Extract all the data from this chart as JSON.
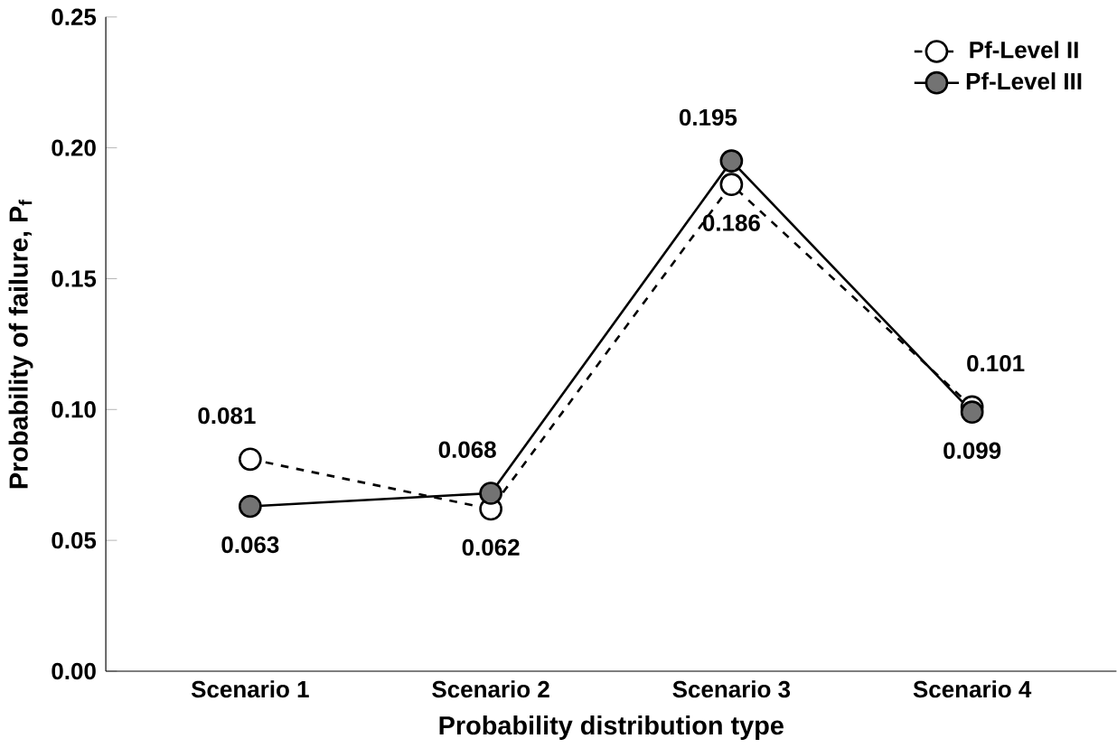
{
  "chart_data": {
    "type": "line",
    "xlabel": "Probability distribution type",
    "ylabel": "Probability of failure, P$_{f}$",
    "categories": [
      "Scenario 1",
      "Scenario 2",
      "Scenario 3",
      "Scenario 4"
    ],
    "series": [
      {
        "name": "Pf-Level II",
        "color": "#000000",
        "line_style": "dashed",
        "values": [
          0.081,
          0.062,
          0.186,
          0.101
        ],
        "value_labels": [
          "0.081",
          "0.062",
          "0.186",
          "0.101"
        ]
      },
      {
        "name": "Pf-Level III",
        "color": "#000000",
        "line_style": "solid",
        "values": [
          0.063,
          0.068,
          0.195,
          0.099
        ],
        "value_labels": [
          "0.063",
          "0.068",
          "0.195",
          "0.099"
        ]
      }
    ],
    "ylim": [
      0,
      0.25
    ],
    "yticks": [
      {
        "value": 0,
        "label": "0.00"
      },
      {
        "value": 0.05,
        "label": "0.05"
      },
      {
        "value": 0.1,
        "label": "0.10"
      },
      {
        "value": 0.15,
        "label": "0.15"
      },
      {
        "value": 0.2,
        "label": "0.20"
      },
      {
        "value": 0.25,
        "label": "0.25"
      }
    ],
    "marker": "circle",
    "legend": "top right",
    "grid": false
  }
}
